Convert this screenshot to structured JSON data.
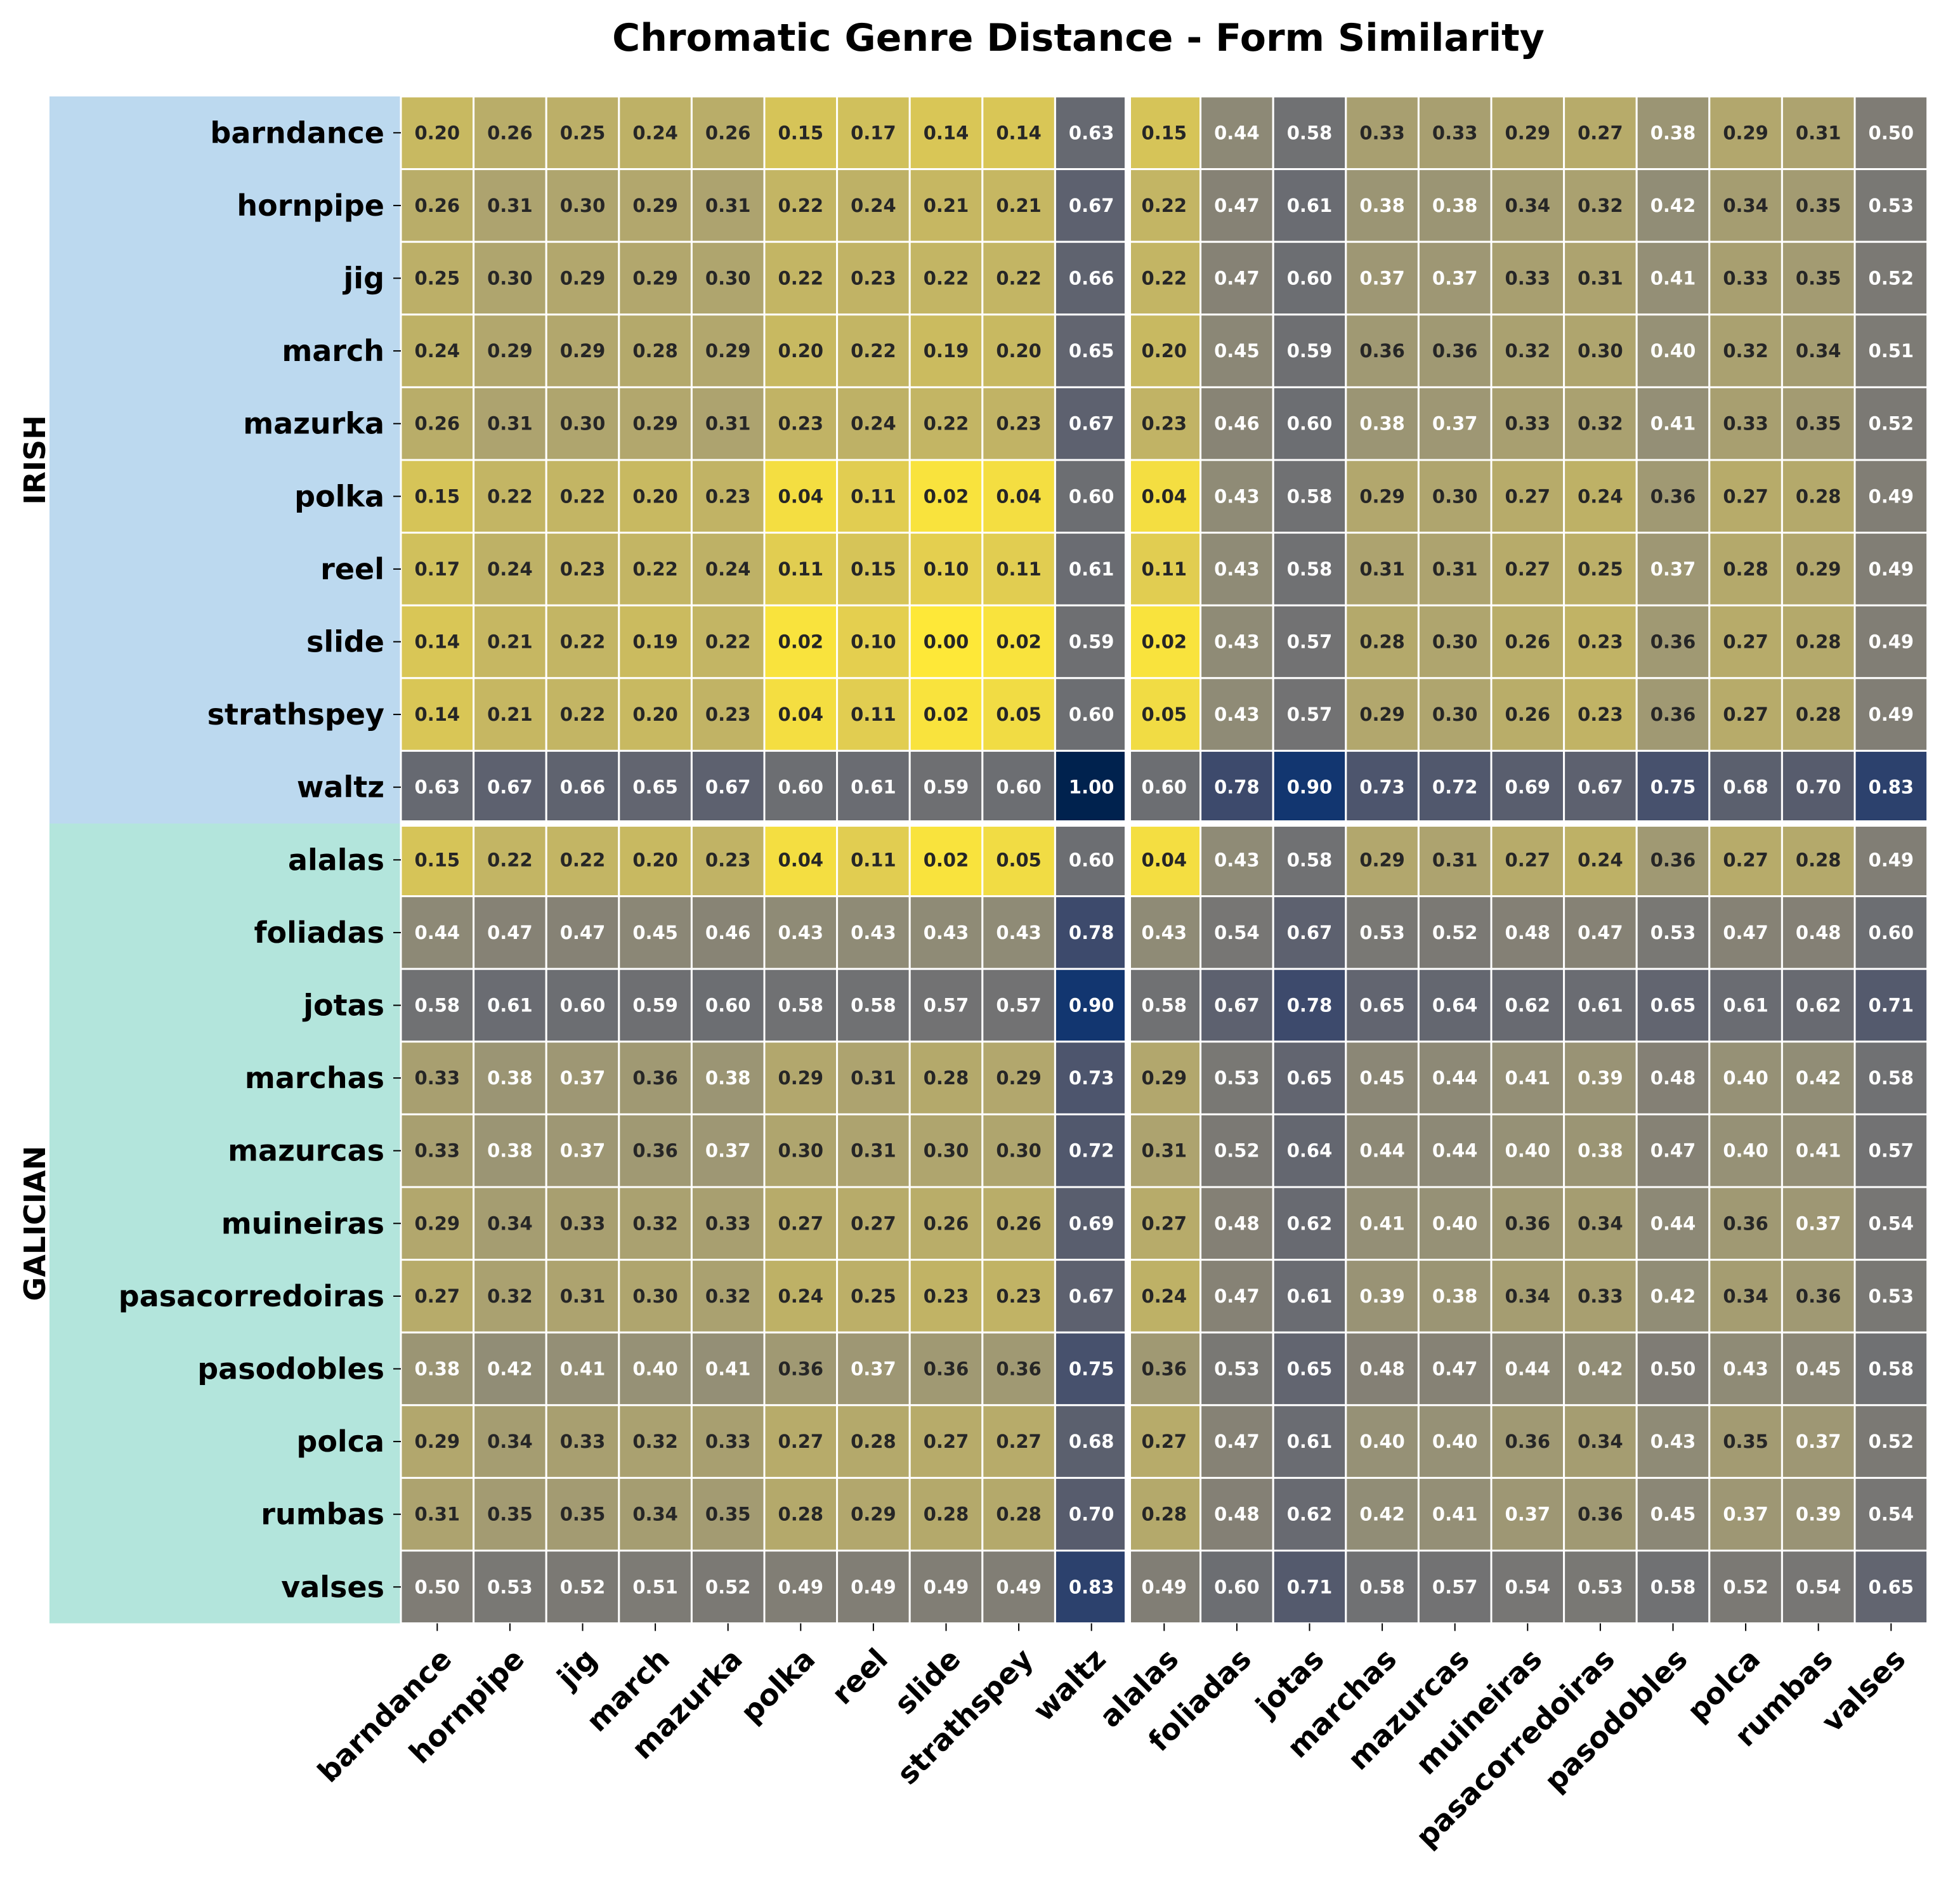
{
  "chart_data": {
    "type": "heatmap",
    "title": "Chromatic Genre Distance - Form Similarity",
    "colormap": "cividis",
    "vmin": 0,
    "vmax": 1,
    "groups": [
      {
        "name": "IRISH",
        "color": "#bcd9ef",
        "rows": [
          "barndance",
          "hornpipe",
          "jig",
          "march",
          "mazurka",
          "polka",
          "reel",
          "slide",
          "strathspey",
          "waltz"
        ]
      },
      {
        "name": "GALICIAN",
        "color": "#b3e5dc",
        "rows": [
          "alalas",
          "foliadas",
          "jotas",
          "marchas",
          "mazurcas",
          "muineiras",
          "pasacorredoiras",
          "pasodobles",
          "polca",
          "rumbas",
          "valses"
        ]
      }
    ],
    "rows": [
      "barndance",
      "hornpipe",
      "jig",
      "march",
      "mazurka",
      "polka",
      "reel",
      "slide",
      "strathspey",
      "waltz",
      "alalas",
      "foliadas",
      "jotas",
      "marchas",
      "mazurcas",
      "muineiras",
      "pasacorredoiras",
      "pasodobles",
      "polca",
      "rumbas",
      "valses"
    ],
    "columns": [
      "barndance",
      "hornpipe",
      "jig",
      "march",
      "mazurka",
      "polka",
      "reel",
      "slide",
      "strathspey",
      "waltz",
      "alalas",
      "foliadas",
      "jotas",
      "marchas",
      "mazurcas",
      "muineiras",
      "pasacorredoiras",
      "pasodobles",
      "polca",
      "rumbas",
      "valses"
    ],
    "values": [
      [
        0.2,
        0.26,
        0.25,
        0.24,
        0.26,
        0.15,
        0.17,
        0.14,
        0.14,
        0.63,
        0.15,
        0.44,
        0.58,
        0.33,
        0.33,
        0.29,
        0.27,
        0.38,
        0.29,
        0.31,
        0.5
      ],
      [
        0.26,
        0.31,
        0.3,
        0.29,
        0.31,
        0.22,
        0.24,
        0.21,
        0.21,
        0.67,
        0.22,
        0.47,
        0.61,
        0.38,
        0.38,
        0.34,
        0.32,
        0.42,
        0.34,
        0.35,
        0.53
      ],
      [
        0.25,
        0.3,
        0.29,
        0.29,
        0.3,
        0.22,
        0.23,
        0.22,
        0.22,
        0.66,
        0.22,
        0.47,
        0.6,
        0.37,
        0.37,
        0.33,
        0.31,
        0.41,
        0.33,
        0.35,
        0.52
      ],
      [
        0.24,
        0.29,
        0.29,
        0.28,
        0.29,
        0.2,
        0.22,
        0.19,
        0.2,
        0.65,
        0.2,
        0.45,
        0.59,
        0.36,
        0.36,
        0.32,
        0.3,
        0.4,
        0.32,
        0.34,
        0.51
      ],
      [
        0.26,
        0.31,
        0.3,
        0.29,
        0.31,
        0.23,
        0.24,
        0.22,
        0.23,
        0.67,
        0.23,
        0.46,
        0.6,
        0.38,
        0.37,
        0.33,
        0.32,
        0.41,
        0.33,
        0.35,
        0.52
      ],
      [
        0.15,
        0.22,
        0.22,
        0.2,
        0.23,
        0.04,
        0.11,
        0.02,
        0.04,
        0.6,
        0.04,
        0.43,
        0.58,
        0.29,
        0.3,
        0.27,
        0.24,
        0.36,
        0.27,
        0.28,
        0.49
      ],
      [
        0.17,
        0.24,
        0.23,
        0.22,
        0.24,
        0.11,
        0.15,
        0.1,
        0.11,
        0.61,
        0.11,
        0.43,
        0.58,
        0.31,
        0.31,
        0.27,
        0.25,
        0.37,
        0.28,
        0.29,
        0.49
      ],
      [
        0.14,
        0.21,
        0.22,
        0.19,
        0.22,
        0.02,
        0.1,
        0.0,
        0.02,
        0.59,
        0.02,
        0.43,
        0.57,
        0.28,
        0.3,
        0.26,
        0.23,
        0.36,
        0.27,
        0.28,
        0.49
      ],
      [
        0.14,
        0.21,
        0.22,
        0.2,
        0.23,
        0.04,
        0.11,
        0.02,
        0.05,
        0.6,
        0.05,
        0.43,
        0.57,
        0.29,
        0.3,
        0.26,
        0.23,
        0.36,
        0.27,
        0.28,
        0.49
      ],
      [
        0.63,
        0.67,
        0.66,
        0.65,
        0.67,
        0.6,
        0.61,
        0.59,
        0.6,
        1.0,
        0.6,
        0.78,
        0.9,
        0.73,
        0.72,
        0.69,
        0.67,
        0.75,
        0.68,
        0.7,
        0.83
      ],
      [
        0.15,
        0.22,
        0.22,
        0.2,
        0.23,
        0.04,
        0.11,
        0.02,
        0.05,
        0.6,
        0.04,
        0.43,
        0.58,
        0.29,
        0.31,
        0.27,
        0.24,
        0.36,
        0.27,
        0.28,
        0.49
      ],
      [
        0.44,
        0.47,
        0.47,
        0.45,
        0.46,
        0.43,
        0.43,
        0.43,
        0.43,
        0.78,
        0.43,
        0.54,
        0.67,
        0.53,
        0.52,
        0.48,
        0.47,
        0.53,
        0.47,
        0.48,
        0.6
      ],
      [
        0.58,
        0.61,
        0.6,
        0.59,
        0.6,
        0.58,
        0.58,
        0.57,
        0.57,
        0.9,
        0.58,
        0.67,
        0.78,
        0.65,
        0.64,
        0.62,
        0.61,
        0.65,
        0.61,
        0.62,
        0.71
      ],
      [
        0.33,
        0.38,
        0.37,
        0.36,
        0.38,
        0.29,
        0.31,
        0.28,
        0.29,
        0.73,
        0.29,
        0.53,
        0.65,
        0.45,
        0.44,
        0.41,
        0.39,
        0.48,
        0.4,
        0.42,
        0.58
      ],
      [
        0.33,
        0.38,
        0.37,
        0.36,
        0.37,
        0.3,
        0.31,
        0.3,
        0.3,
        0.72,
        0.31,
        0.52,
        0.64,
        0.44,
        0.44,
        0.4,
        0.38,
        0.47,
        0.4,
        0.41,
        0.57
      ],
      [
        0.29,
        0.34,
        0.33,
        0.32,
        0.33,
        0.27,
        0.27,
        0.26,
        0.26,
        0.69,
        0.27,
        0.48,
        0.62,
        0.41,
        0.4,
        0.36,
        0.34,
        0.44,
        0.36,
        0.37,
        0.54
      ],
      [
        0.27,
        0.32,
        0.31,
        0.3,
        0.32,
        0.24,
        0.25,
        0.23,
        0.23,
        0.67,
        0.24,
        0.47,
        0.61,
        0.39,
        0.38,
        0.34,
        0.33,
        0.42,
        0.34,
        0.36,
        0.53
      ],
      [
        0.38,
        0.42,
        0.41,
        0.4,
        0.41,
        0.36,
        0.37,
        0.36,
        0.36,
        0.75,
        0.36,
        0.53,
        0.65,
        0.48,
        0.47,
        0.44,
        0.42,
        0.5,
        0.43,
        0.45,
        0.58
      ],
      [
        0.29,
        0.34,
        0.33,
        0.32,
        0.33,
        0.27,
        0.28,
        0.27,
        0.27,
        0.68,
        0.27,
        0.47,
        0.61,
        0.4,
        0.4,
        0.36,
        0.34,
        0.43,
        0.35,
        0.37,
        0.52
      ],
      [
        0.31,
        0.35,
        0.35,
        0.34,
        0.35,
        0.28,
        0.29,
        0.28,
        0.28,
        0.7,
        0.28,
        0.48,
        0.62,
        0.42,
        0.41,
        0.37,
        0.36,
        0.45,
        0.37,
        0.39,
        0.54
      ],
      [
        0.5,
        0.53,
        0.52,
        0.51,
        0.52,
        0.49,
        0.49,
        0.49,
        0.49,
        0.83,
        0.49,
        0.6,
        0.71,
        0.58,
        0.57,
        0.54,
        0.53,
        0.58,
        0.52,
        0.54,
        0.65
      ]
    ]
  }
}
